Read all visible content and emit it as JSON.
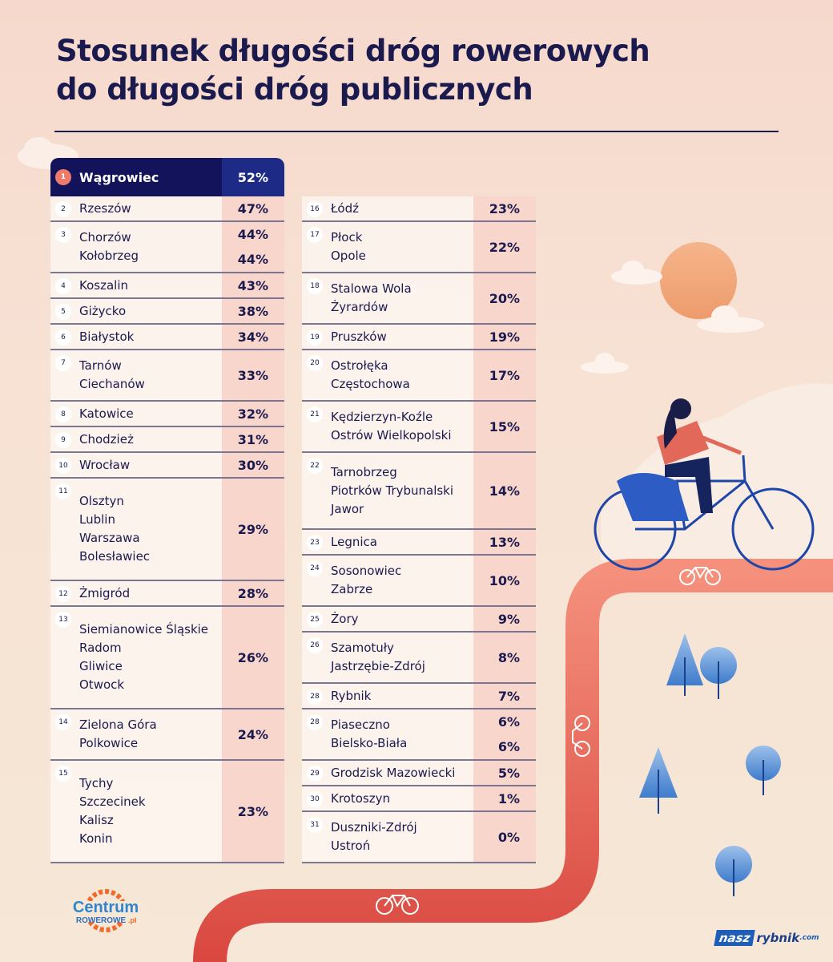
{
  "title_lines": [
    "Stosunek długości dróg rowerowych",
    "do długości dróg publicznych"
  ],
  "colors": {
    "title": "#1b1a4f",
    "header_bg": "#12135a",
    "percent_col": "#f8d6cc",
    "road": "#ef7e6c",
    "rank1_badge": "#ee7b69"
  },
  "left_table": [
    {
      "rank": "1",
      "cities": [
        "Wągrowiec"
      ],
      "values": [
        "52%"
      ],
      "highlight": true
    },
    {
      "rank": "2",
      "cities": [
        "Rzeszów"
      ],
      "values": [
        "47%"
      ]
    },
    {
      "rank": "3",
      "cities": [
        "Chorzów",
        "Kołobrzeg"
      ],
      "values": [
        "44%",
        "44%"
      ]
    },
    {
      "rank": "4",
      "cities": [
        "Koszalin"
      ],
      "values": [
        "43%"
      ]
    },
    {
      "rank": "5",
      "cities": [
        "Giżycko"
      ],
      "values": [
        "38%"
      ]
    },
    {
      "rank": "6",
      "cities": [
        "Białystok"
      ],
      "values": [
        "34%"
      ]
    },
    {
      "rank": "7",
      "cities": [
        "Tarnów",
        "Ciechanów"
      ],
      "values": [
        "33%"
      ]
    },
    {
      "rank": "8",
      "cities": [
        "Katowice"
      ],
      "values": [
        "32%"
      ]
    },
    {
      "rank": "9",
      "cities": [
        "Chodzież"
      ],
      "values": [
        "31%"
      ]
    },
    {
      "rank": "10",
      "cities": [
        "Wrocław"
      ],
      "values": [
        "30%"
      ]
    },
    {
      "rank": "11",
      "cities": [
        "Olsztyn",
        "Lublin",
        "Warszawa",
        "Bolesławiec"
      ],
      "values": [
        "29%"
      ]
    },
    {
      "rank": "12",
      "cities": [
        "Żmigród"
      ],
      "values": [
        "28%"
      ]
    },
    {
      "rank": "13",
      "cities": [
        "Siemianowice Śląskie",
        "Radom",
        "Gliwice",
        "Otwock"
      ],
      "values": [
        "26%"
      ]
    },
    {
      "rank": "14",
      "cities": [
        "Zielona Góra",
        "Polkowice"
      ],
      "values": [
        "24%"
      ]
    },
    {
      "rank": "15",
      "cities": [
        "Tychy",
        "Szczecinek",
        "Kalisz",
        "Konin"
      ],
      "values": [
        "23%"
      ]
    }
  ],
  "right_table": [
    {
      "rank": "16",
      "cities": [
        "Łódź"
      ],
      "values": [
        "23%"
      ]
    },
    {
      "rank": "17",
      "cities": [
        "Płock",
        "Opole"
      ],
      "values": [
        "22%"
      ]
    },
    {
      "rank": "18",
      "cities": [
        "Stalowa Wola",
        "Żyrardów"
      ],
      "values": [
        "20%"
      ]
    },
    {
      "rank": "19",
      "cities": [
        "Pruszków"
      ],
      "values": [
        "19%"
      ]
    },
    {
      "rank": "20",
      "cities": [
        "Ostrołęka",
        "Częstochowa"
      ],
      "values": [
        "17%"
      ]
    },
    {
      "rank": "21",
      "cities": [
        "Kędzierzyn-Koźle",
        "Ostrów Wielkopolski"
      ],
      "values": [
        "15%"
      ]
    },
    {
      "rank": "22",
      "cities": [
        "Tarnobrzeg",
        "Piotrków Trybunalski",
        "Jawor"
      ],
      "values": [
        "14%"
      ]
    },
    {
      "rank": "23",
      "cities": [
        "Legnica"
      ],
      "values": [
        "13%"
      ]
    },
    {
      "rank": "24",
      "cities": [
        "Sosonowiec",
        "Zabrze"
      ],
      "values": [
        "10%"
      ]
    },
    {
      "rank": "25",
      "cities": [
        "Żory"
      ],
      "values": [
        "9%"
      ]
    },
    {
      "rank": "26",
      "cities": [
        "Szamotuły",
        "Jastrzębie-Zdrój"
      ],
      "values": [
        "8%"
      ]
    },
    {
      "rank": "28",
      "cities": [
        "Rybnik"
      ],
      "values": [
        "7%"
      ]
    },
    {
      "rank": "28",
      "cities": [
        "Piaseczno",
        "Bielsko-Biała"
      ],
      "values": [
        "6%",
        "6%"
      ]
    },
    {
      "rank": "29",
      "cities": [
        "Grodzisk Mazowiecki"
      ],
      "values": [
        "5%"
      ]
    },
    {
      "rank": "30",
      "cities": [
        "Krotoszyn"
      ],
      "values": [
        "1%"
      ]
    },
    {
      "rank": "31",
      "cities": [
        "Duszniki-Zdrój",
        "Ustroń"
      ],
      "values": [
        "0%"
      ]
    }
  ],
  "logos": {
    "centrum": {
      "line1": "Centrum",
      "line2": "ROWEROWE",
      "suffix": ".pl"
    },
    "naszrybnik": {
      "part1": "nasz",
      "part2": "rybnik",
      "part3": ".com"
    }
  },
  "illustration": {
    "icons": [
      "sun",
      "clouds",
      "cyclist",
      "bike-road",
      "bicycle-sign",
      "trees"
    ]
  }
}
